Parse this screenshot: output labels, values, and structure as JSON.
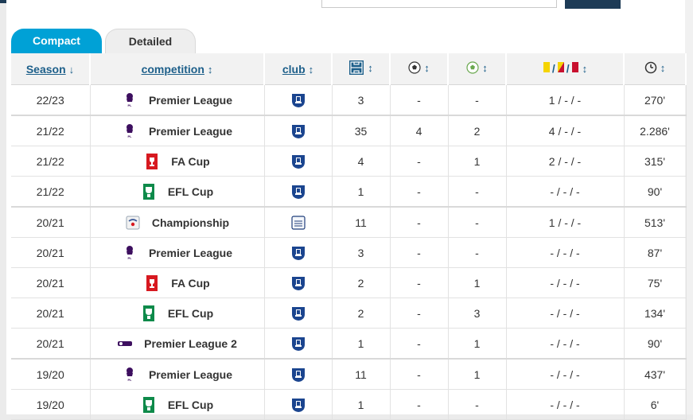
{
  "tabs": {
    "compact": "Compact",
    "detailed": "Detailed"
  },
  "headers": {
    "season": "Season",
    "season_sort": "↓",
    "competition": "competition",
    "club": "club",
    "sort": "↕",
    "cards_sep1": "/",
    "cards_sep2": "/"
  },
  "rows": [
    {
      "season": "22/23",
      "competition": "Premier League",
      "comp_logo": "premier-league",
      "club_crest": "everton",
      "apps": "3",
      "goals": "-",
      "assists": "-",
      "cards": "1 / - / -",
      "minutes": "270'"
    },
    {
      "season": "21/22",
      "competition": "Premier League",
      "comp_logo": "premier-league",
      "club_crest": "everton",
      "apps": "35",
      "goals": "4",
      "assists": "2",
      "cards": "4 / - / -",
      "minutes": "2.286'"
    },
    {
      "season": "21/22",
      "competition": "FA Cup",
      "comp_logo": "fa-cup",
      "club_crest": "everton",
      "apps": "4",
      "goals": "-",
      "assists": "1",
      "cards": "2 / - / -",
      "minutes": "315'"
    },
    {
      "season": "21/22",
      "competition": "EFL Cup",
      "comp_logo": "efl-cup",
      "club_crest": "everton",
      "apps": "1",
      "goals": "-",
      "assists": "-",
      "cards": "- / - / -",
      "minutes": "90'"
    },
    {
      "season": "20/21",
      "competition": "Championship",
      "comp_logo": "championship",
      "club_crest": "preston",
      "apps": "11",
      "goals": "-",
      "assists": "-",
      "cards": "1 / - / -",
      "minutes": "513'"
    },
    {
      "season": "20/21",
      "competition": "Premier League",
      "comp_logo": "premier-league",
      "club_crest": "everton",
      "apps": "3",
      "goals": "-",
      "assists": "-",
      "cards": "- / - / -",
      "minutes": "87'"
    },
    {
      "season": "20/21",
      "competition": "FA Cup",
      "comp_logo": "fa-cup",
      "club_crest": "everton",
      "apps": "2",
      "goals": "-",
      "assists": "1",
      "cards": "- / - / -",
      "minutes": "75'"
    },
    {
      "season": "20/21",
      "competition": "EFL Cup",
      "comp_logo": "efl-cup",
      "club_crest": "everton",
      "apps": "2",
      "goals": "-",
      "assists": "3",
      "cards": "- / - / -",
      "minutes": "134'"
    },
    {
      "season": "20/21",
      "competition": "Premier League 2",
      "comp_logo": "premier-league-2",
      "club_crest": "everton",
      "apps": "1",
      "goals": "-",
      "assists": "1",
      "cards": "- / - / -",
      "minutes": "90'"
    },
    {
      "season": "19/20",
      "competition": "Premier League",
      "comp_logo": "premier-league",
      "club_crest": "everton",
      "apps": "11",
      "goals": "-",
      "assists": "1",
      "cards": "- / - / -",
      "minutes": "437'"
    },
    {
      "season": "19/20",
      "competition": "EFL Cup",
      "comp_logo": "efl-cup",
      "club_crest": "everton",
      "apps": "1",
      "goals": "-",
      "assists": "-",
      "cards": "- / - / -",
      "minutes": "6'"
    }
  ],
  "colors": {
    "accent": "#00a1d6",
    "link": "#1d5f8a",
    "header_bg": "#f2f2f2",
    "topbar": "#1d3b56",
    "yellow_card": "#f5d400",
    "red_card": "#c8102e"
  }
}
